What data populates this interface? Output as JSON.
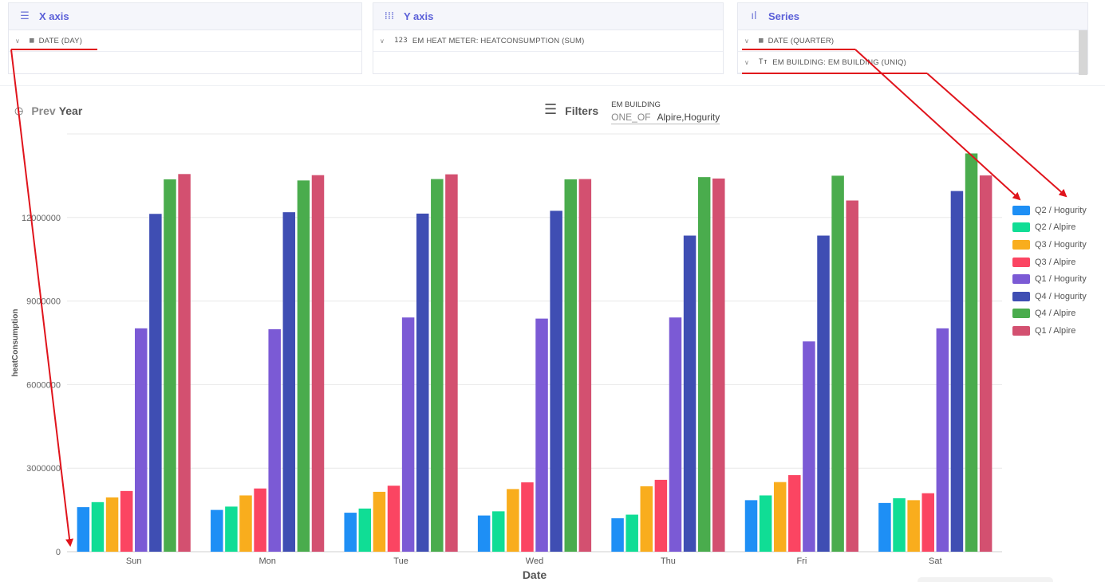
{
  "panels": {
    "x_axis": {
      "title": "X axis",
      "icon": "list-icon",
      "fields": [
        "DATE (DAY)"
      ]
    },
    "y_axis": {
      "title": "Y axis",
      "icon": "columns-icon",
      "fields": [
        "EM HEAT METER: HEATCONSUMPTION (SUM)"
      ]
    },
    "series": {
      "title": "Series",
      "icon": "bar-chart-icon",
      "fields": [
        "DATE (QUARTER)",
        "EM BUILDING: EM BUILDING (UNIQ)"
      ]
    }
  },
  "toolbar": {
    "prev_label_1": "Prev",
    "prev_label_2": "Year",
    "filters_label": "Filters",
    "filter_name": "EM BUILDING",
    "filter_op": "ONE_OF",
    "filter_value": "Alpire,Hogurity"
  },
  "chart_data": {
    "type": "bar",
    "xlabel": "Date",
    "ylabel": "heatConsumption",
    "ylim": [
      0,
      15000000
    ],
    "yticks": [
      0,
      3000000,
      6000000,
      9000000,
      12000000
    ],
    "ytick_labels": [
      "0",
      "3000000",
      "6000000",
      "9000000",
      "12000000"
    ],
    "categories": [
      "Sun",
      "Mon",
      "Tue",
      "Wed",
      "Thu",
      "Fri",
      "Sat"
    ],
    "legend_position": "right",
    "grid": true,
    "series": [
      {
        "name": "Q2 / Hogurity",
        "color": "#1e8ff5",
        "values": [
          1600000,
          1500000,
          1400000,
          1300000,
          1200000,
          1850000,
          1750000
        ]
      },
      {
        "name": "Q2 / Alpire",
        "color": "#10dd95",
        "values": [
          1780000,
          1620000,
          1550000,
          1450000,
          1330000,
          2020000,
          1920000
        ]
      },
      {
        "name": "Q3 / Hogurity",
        "color": "#f9ad1d",
        "values": [
          1950000,
          2020000,
          2150000,
          2250000,
          2350000,
          2500000,
          1850000
        ]
      },
      {
        "name": "Q3 / Alpire",
        "color": "#fb4562",
        "values": [
          2180000,
          2270000,
          2370000,
          2490000,
          2580000,
          2750000,
          2100000
        ]
      },
      {
        "name": "Q1 / Hogurity",
        "color": "#7b5ad5",
        "values": [
          8020000,
          7990000,
          8410000,
          8370000,
          8410000,
          7550000,
          8020000
        ]
      },
      {
        "name": "Q4 / Hogurity",
        "color": "#3f4eb3",
        "values": [
          12130000,
          12190000,
          12140000,
          12240000,
          11350000,
          11350000,
          12950000
        ]
      },
      {
        "name": "Q4 / Alpire",
        "color": "#4aac4d",
        "values": [
          13370000,
          13330000,
          13380000,
          13370000,
          13450000,
          13500000,
          14300000
        ]
      },
      {
        "name": "Q1 / Alpire",
        "color": "#d35070",
        "values": [
          13560000,
          13520000,
          13550000,
          13380000,
          13400000,
          12610000,
          13510000
        ]
      }
    ]
  }
}
